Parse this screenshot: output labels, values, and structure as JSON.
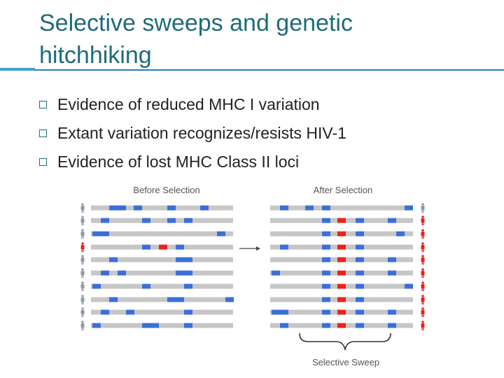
{
  "slide": {
    "title": "Selective sweeps and genetic hitchhiking",
    "bullets": [
      "Evidence of reduced MHC I variation",
      "Extant variation recognizes/resists HIV-1",
      "Evidence of lost MHC Class II loci"
    ]
  },
  "diagram": {
    "before_label": "Before Selection",
    "after_label": "After Selection",
    "sweep_label": "Selective Sweep",
    "colors": {
      "chromosome": "#c6c6c6",
      "neutral_variant": "#3a6fd8",
      "selected_variant": "#e8231c",
      "person_gray": "#8f9aa8",
      "person_red": "#e8231c"
    }
  }
}
